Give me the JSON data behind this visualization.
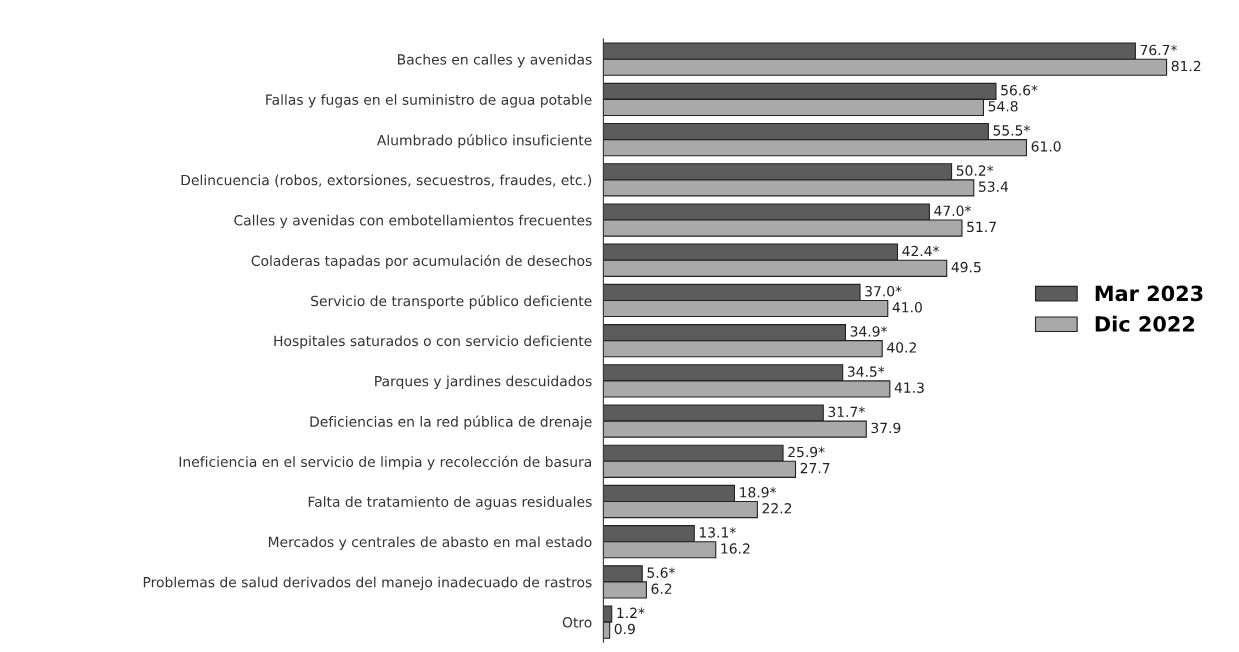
{
  "chart_data": {
    "type": "bar",
    "orientation": "horizontal",
    "legend": "right",
    "tick_labels": "y",
    "categories": [
      "Baches en calles y avenidas",
      "Fallas y fugas en el suministro de agua potable",
      "Alumbrado público insuficiente",
      "Delincuencia (robos, extorsiones, secuestros, fraudes, etc.)",
      "Calles y avenidas con embotellamientos frecuentes",
      "Coladeras tapadas por acumulación de desechos",
      "Servicio de transporte público deficiente",
      "Hospitales saturados o con servicio deficiente",
      "Parques y jardines descuidados",
      "Deficiencias en la red pública de drenaje",
      "Ineficiencia en el servicio de limpia y recolección de basura",
      "Falta de tratamiento de aguas residuales",
      "Mercados y centrales de abasto en mal estado",
      "Problemas de salud derivados del manejo inadecuado de rastros",
      "Otro"
    ],
    "series": [
      {
        "name": "Mar 2023",
        "color": "#5c5c5c",
        "values": [
          76.7,
          56.6,
          55.5,
          50.2,
          47.0,
          42.4,
          37.0,
          34.9,
          34.5,
          31.7,
          25.9,
          18.9,
          13.1,
          5.6,
          1.2
        ],
        "value_labels": [
          "76.7*",
          "56.6*",
          "55.5*",
          "50.2*",
          "47.0*",
          "42.4*",
          "37.0*",
          "34.9*",
          "34.5*",
          "31.7*",
          "25.9*",
          "18.9*",
          "13.1*",
          "5.6*",
          "1.2*"
        ]
      },
      {
        "name": "Dic 2022",
        "color": "#a9a9a9",
        "values": [
          81.2,
          54.8,
          61.0,
          53.4,
          51.7,
          49.5,
          41.0,
          40.2,
          41.3,
          37.9,
          27.7,
          22.2,
          16.2,
          6.2,
          0.9
        ],
        "value_labels": [
          "81.2",
          "54.8",
          "61.0",
          "53.4",
          "51.7",
          "49.5",
          "41.0",
          "40.2",
          "41.3",
          "37.9",
          "27.7",
          "22.2",
          "16.2",
          "6.2",
          "0.9"
        ]
      }
    ]
  }
}
